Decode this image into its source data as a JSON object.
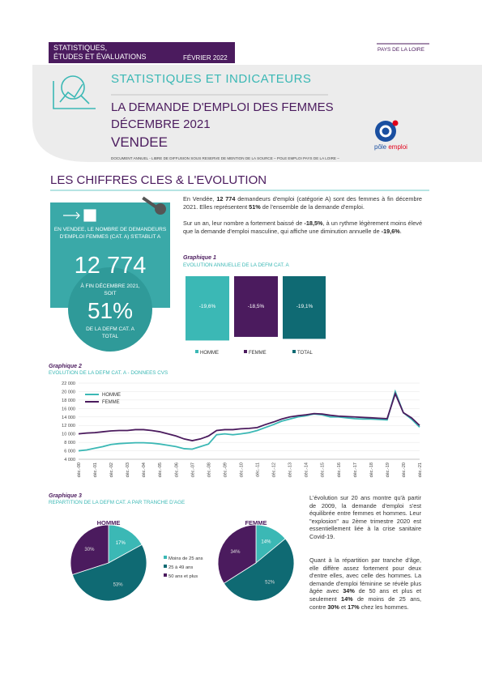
{
  "header": {
    "series_title": [
      "STATISTIQUES,",
      "ÉTUDES ET ÉVALUATIONS"
    ],
    "date": "FÉVRIER 2022",
    "region": "PAYS DE LA LOIRE",
    "kicker": "STATISTIQUES ET INDICATEURS",
    "title": [
      "LA DEMANDE D'EMPLOI DES FEMMES",
      "DÉCEMBRE 2021"
    ],
    "place": "VENDEE",
    "logo_text": [
      "pôle",
      "emploi"
    ],
    "note": "DOCUMENT ANNUEL - LIBRE DE DIFFUSION SOUS RESERVE DE MENTION DE LA SOURCE – POLE EMPLOI PAYS DE LA LOIRE –"
  },
  "section_title": "LES CHIFFRES CLES & L'EVOLUTION",
  "key_card": {
    "intro": "EN VENDEE, LE NOMBRE DE DEMANDEURS D'EMPLOI FEMMES (CAT. A) S'ETABLIT A",
    "number": "12 774",
    "middle": "À FIN DÉCEMBRE 2021, SOIT",
    "share": "51%",
    "outro": "DE LA DEFM CAT. A TOTAL"
  },
  "paragraphs": [
    [
      "En Vendée, ",
      "12 774",
      " demandeurs d'emploi (catégorie A) sont des femmes à fin décembre 2021. Elles représentent ",
      "51%",
      " de l'ensemble de la demande d'emploi."
    ],
    [
      "Sur un an, leur nombre a fortement baissé de ",
      "-18,5%",
      ", à un rythme légèrement moins élevé que la demande d'emploi masculine, qui affiche une diminution annuelle de ",
      "-19,6%",
      "."
    ],
    [
      "L'évolution sur 20 ans montre qu'à partir de 2009, la demande d'emploi s'est équilibrée entre femmes et hommes. Leur \"explosion\" au 2ème trimestre 2020 est essentiellement liée à la crise sanitaire Covid-19."
    ],
    [
      "Quant à la répartition par tranche d'âge, elle diffère assez fortement pour deux d'entre elles, avec celle des hommes. La demande d'emploi féminine se révèle plus âgée avec ",
      "34%",
      " de 50 ans et plus et seulement ",
      "14%",
      " de moins de 25 ans, contre ",
      "30%",
      " et ",
      "17%",
      " chez les hommes."
    ]
  ],
  "graph1": {
    "type": "bar",
    "label": "Graphique 1",
    "title": "EVOLUTION ANNUELLE DE LA DEFM CAT. A",
    "ylim": [
      -20,
      0
    ],
    "series": [
      {
        "name": "HOMME",
        "color": "#3bb8b5",
        "values": [
          -19.6
        ],
        "value_labels": [
          "-19,6%"
        ]
      },
      {
        "name": "FEMME",
        "color": "#4b1b5e",
        "values": [
          -18.5
        ],
        "value_labels": [
          "-18,5%"
        ]
      },
      {
        "name": "TOTAL",
        "color": "#0f6a73",
        "values": [
          -19.1
        ],
        "value_labels": [
          "-19,1%"
        ]
      }
    ]
  },
  "graph2": {
    "type": "line",
    "label": "Graphique 2",
    "title": "EVOLUTION DE LA DEFM CAT. A - DONNEES CVS",
    "categories": [
      "déc.-00",
      null,
      "déc.-01",
      null,
      "déc.-02",
      null,
      "déc.-03",
      null,
      "déc.-04",
      null,
      "déc.-05",
      null,
      "déc.-06",
      null,
      "déc.-07",
      null,
      "déc.-08",
      null,
      "déc.-09",
      null,
      "déc.-10",
      null,
      "déc.-11",
      null,
      "déc.-12",
      null,
      "déc.-13",
      null,
      "déc.-14",
      null,
      "déc.-15",
      null,
      "déc.-16",
      null,
      "déc.-17",
      null,
      "déc.-18",
      null,
      "déc.-19",
      null,
      "déc.-20",
      null,
      "déc.-21"
    ],
    "ylim": [
      4000,
      22000
    ],
    "yticks": [
      {
        "value": 4000,
        "label": "4 000"
      },
      {
        "value": 6000,
        "label": "6 000"
      },
      {
        "value": 8000,
        "label": "8 000"
      },
      {
        "value": 10000,
        "label": "10 000"
      },
      {
        "value": 12000,
        "label": "12 000"
      },
      {
        "value": 14000,
        "label": "14 000"
      },
      {
        "value": 16000,
        "label": "16 000"
      },
      {
        "value": 18000,
        "label": "18 000"
      },
      {
        "value": 20000,
        "label": "20 000"
      },
      {
        "value": 22000,
        "label": "22 000"
      }
    ],
    "series": [
      {
        "name": "HOMME",
        "color": "#3bb8b5",
        "values": [
          6000,
          6200,
          6600,
          7000,
          7500,
          7700,
          7800,
          7900,
          7900,
          7800,
          7600,
          7300,
          7000,
          6500,
          6400,
          7000,
          7600,
          9800,
          10000,
          9800,
          10000,
          10300,
          10800,
          11500,
          12200,
          13000,
          13500,
          14000,
          14300,
          14700,
          14500,
          14000,
          14000,
          13800,
          13600,
          13500,
          13500,
          13400,
          13300,
          20000,
          15000,
          13500,
          11600
        ]
      },
      {
        "name": "FEMME",
        "color": "#4b1b5e",
        "values": [
          10000,
          10200,
          10300,
          10500,
          10700,
          10800,
          10800,
          11000,
          11000,
          10800,
          10500,
          10000,
          9500,
          8800,
          8400,
          8800,
          9500,
          10800,
          11000,
          11000,
          11200,
          11300,
          11500,
          12200,
          12800,
          13500,
          14000,
          14300,
          14500,
          14800,
          14700,
          14400,
          14200,
          14100,
          14000,
          13900,
          13800,
          13700,
          13600,
          19500,
          15000,
          13800,
          12000
        ]
      }
    ]
  },
  "graph3": {
    "type": "pie",
    "label": "Graphique 3",
    "title": "REPARTITION DE LA DEFM CAT. A PAR TRANCHE D'AGE",
    "categories": [
      "Moins de 25 ans",
      "25 à 49 ans",
      "50 ans et plus"
    ],
    "colors": [
      "#3bb8b5",
      "#0f6a73",
      "#4b1b5e"
    ],
    "pies": [
      {
        "name": "HOMME",
        "values": [
          17,
          53,
          30
        ],
        "value_labels": [
          "17%",
          "53%",
          "30%"
        ]
      },
      {
        "name": "FEMME",
        "values": [
          14,
          52,
          34
        ],
        "value_labels": [
          "14%",
          "52%",
          "34%"
        ]
      }
    ]
  }
}
